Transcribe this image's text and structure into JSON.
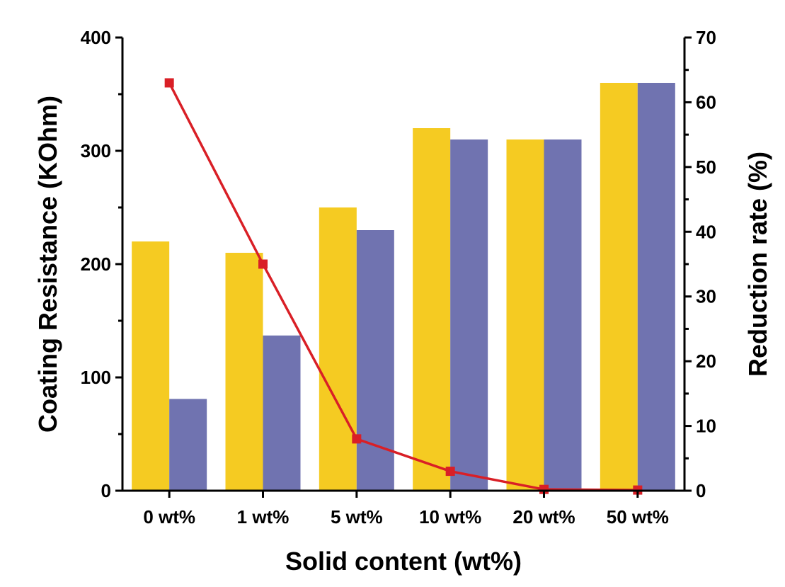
{
  "chart_data": {
    "type": "bar",
    "xlabel": "Solid content (wt%)",
    "ylabel": "Coating Resistance (KOhm)",
    "y2label": "Reduction rate (%)",
    "categories": [
      "0 wt%",
      "1 wt%",
      "5 wt%",
      "10 wt%",
      "20 wt%",
      "50 wt%"
    ],
    "ylim": [
      0,
      400
    ],
    "yticks": [
      0,
      100,
      200,
      300,
      400
    ],
    "y2lim": [
      0,
      70
    ],
    "y2ticks": [
      0,
      10,
      20,
      30,
      40,
      50,
      60,
      70
    ],
    "series": [
      {
        "type": "bar",
        "axis": "left",
        "color": "#F5CB22",
        "values": [
          220,
          210,
          250,
          320,
          310,
          360
        ]
      },
      {
        "type": "bar",
        "axis": "left",
        "color": "#7073B0",
        "values": [
          81,
          137,
          230,
          310,
          310,
          360
        ]
      },
      {
        "type": "line",
        "axis": "right",
        "color": "#D91F26",
        "marker": "square",
        "values": [
          63,
          35,
          8,
          3,
          0.2,
          0.1
        ]
      }
    ],
    "grid": false,
    "legend": "none"
  }
}
